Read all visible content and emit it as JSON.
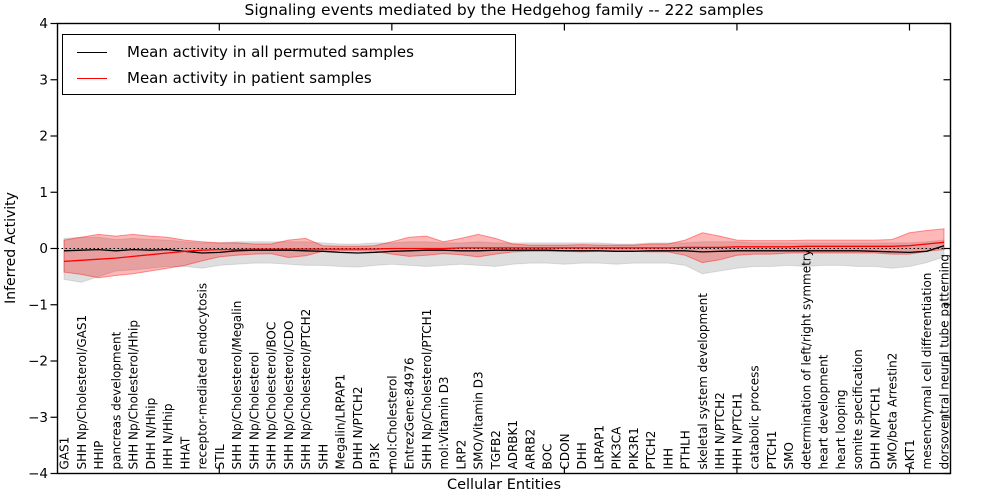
{
  "figure": {
    "title": "Signaling events mediated by the Hedgehog family -- 222 samples",
    "xlabel": "Cellular Entities",
    "ylabel": "Inferred Activity"
  },
  "legend": {
    "entries": [
      {
        "label": "Mean activity in all permuted samples",
        "color": "#000000"
      },
      {
        "label": "Mean activity in patient samples",
        "color": "#ff0000"
      }
    ]
  },
  "chart_data": {
    "type": "line",
    "title": "Signaling events mediated by the Hedgehog family -- 222 samples",
    "xlabel": "Cellular Entities",
    "ylabel": "Inferred Activity",
    "ylim": [
      -4,
      4
    ],
    "yticks": [
      -4,
      -3,
      -2,
      -1,
      0,
      1,
      2,
      3,
      4
    ],
    "x_major_tick_step": 10,
    "grid": false,
    "legend_position": "upper left",
    "zero_line": true,
    "categories": [
      "GAS1",
      "SHH Np/Cholesterol/GAS1",
      "HHIP",
      "pancreas development",
      "SHH Np/Cholesterol/Hhip",
      "DHH N/Hhip",
      "IHH N/Hhip",
      "HHAT",
      "receptor-mediated endocytosis",
      "STIL",
      "SHH Np/Cholesterol/Megalin",
      "SHH Np/Cholesterol",
      "SHH Np/Cholesterol/BOC",
      "SHH Np/Cholesterol/CDO",
      "SHH Np/Cholesterol/PTCH2",
      "SHH",
      "Megalin/LRPAP1",
      "DHH N/PTCH2",
      "PI3K",
      "mol:Cholesterol",
      "EntrezGene:84976",
      "SHH Np/Cholesterol/PTCH1",
      "mol:Vitamin D3",
      "LRP2",
      "SMO/Vitamin D3",
      "TGFB2",
      "ADRBK1",
      "ARRB2",
      "BOC",
      "CDON",
      "DHH",
      "LRPAP1",
      "PIK3CA",
      "PIK3R1",
      "PTCH2",
      "IHH",
      "PTHLH",
      "skeletal system development",
      "IHH N/PTCH2",
      "IHH N/PTCH1",
      "catabolic process",
      "PTCH1",
      "SMO",
      "determination of left/right symmetry",
      "heart development",
      "heart looping",
      "somite specification",
      "DHH N/PTCH1",
      "SMO/beta Arrestin2",
      "AKT1",
      "mesenchymal cell differentiation",
      "dorsoventral neural tube patterning"
    ],
    "series": [
      {
        "name": "Mean activity in all permuted samples",
        "color": "#000000",
        "band_fill": "rgba(0,0,0,0.13)",
        "band_edge": "rgba(0,0,0,0.10)",
        "values": [
          -0.04,
          -0.03,
          -0.02,
          -0.04,
          -0.02,
          -0.03,
          -0.02,
          -0.05,
          -0.08,
          -0.07,
          -0.04,
          -0.03,
          -0.03,
          -0.03,
          -0.04,
          -0.05,
          -0.07,
          -0.08,
          -0.07,
          -0.05,
          -0.04,
          -0.03,
          -0.03,
          -0.04,
          -0.04,
          -0.03,
          -0.03,
          -0.03,
          -0.03,
          -0.04,
          -0.04,
          -0.04,
          -0.05,
          -0.05,
          -0.04,
          -0.04,
          -0.04,
          -0.06,
          -0.05,
          -0.04,
          -0.04,
          -0.04,
          -0.04,
          -0.04,
          -0.04,
          -0.04,
          -0.04,
          -0.05,
          -0.06,
          -0.07,
          -0.05,
          0.05
        ],
        "band_lower": [
          -0.55,
          -0.6,
          -0.5,
          -0.4,
          -0.38,
          -0.35,
          -0.32,
          -0.32,
          -0.35,
          -0.3,
          -0.28,
          -0.26,
          -0.26,
          -0.28,
          -0.3,
          -0.3,
          -0.32,
          -0.33,
          -0.3,
          -0.28,
          -0.3,
          -0.32,
          -0.3,
          -0.28,
          -0.3,
          -0.32,
          -0.28,
          -0.26,
          -0.26,
          -0.28,
          -0.26,
          -0.26,
          -0.28,
          -0.26,
          -0.26,
          -0.26,
          -0.3,
          -0.45,
          -0.4,
          -0.35,
          -0.32,
          -0.32,
          -0.3,
          -0.32,
          -0.3,
          -0.3,
          -0.32,
          -0.32,
          -0.35,
          -0.32,
          -0.25,
          -0.15
        ],
        "band_upper": [
          0.18,
          0.2,
          0.2,
          0.16,
          0.18,
          0.16,
          0.15,
          0.12,
          0.1,
          0.1,
          0.12,
          0.12,
          0.12,
          0.12,
          0.12,
          0.1,
          0.08,
          0.08,
          0.1,
          0.1,
          0.12,
          0.12,
          0.1,
          0.1,
          0.12,
          0.1,
          0.1,
          0.1,
          0.1,
          0.1,
          0.1,
          0.1,
          0.08,
          0.08,
          0.1,
          0.1,
          0.1,
          0.12,
          0.12,
          0.12,
          0.1,
          0.1,
          0.1,
          0.1,
          0.1,
          0.1,
          0.1,
          0.1,
          0.1,
          0.1,
          0.12,
          0.15
        ]
      },
      {
        "name": "Mean activity in patient samples",
        "color": "#ff0000",
        "band_fill": "rgba(255,0,0,0.28)",
        "band_edge": "rgba(255,0,0,0.40)",
        "values": [
          -0.23,
          -0.21,
          -0.19,
          -0.17,
          -0.14,
          -0.11,
          -0.08,
          -0.05,
          -0.03,
          -0.02,
          -0.02,
          -0.01,
          -0.01,
          -0.01,
          -0.01,
          -0.01,
          -0.01,
          -0.01,
          -0.01,
          0.0,
          0.0,
          0.0,
          0.0,
          0.01,
          0.01,
          0.01,
          0.01,
          0.01,
          0.01,
          0.01,
          0.01,
          0.01,
          0.01,
          0.01,
          0.01,
          0.01,
          0.02,
          0.02,
          0.02,
          0.03,
          0.03,
          0.03,
          0.03,
          0.04,
          0.04,
          0.04,
          0.04,
          0.04,
          0.04,
          0.05,
          0.08,
          0.11
        ],
        "band_lower": [
          -0.42,
          -0.46,
          -0.52,
          -0.48,
          -0.45,
          -0.4,
          -0.35,
          -0.3,
          -0.22,
          -0.15,
          -0.12,
          -0.1,
          -0.09,
          -0.16,
          -0.13,
          -0.05,
          -0.04,
          -0.04,
          -0.05,
          -0.1,
          -0.14,
          -0.12,
          -0.09,
          -0.11,
          -0.15,
          -0.1,
          -0.06,
          -0.05,
          -0.05,
          -0.05,
          -0.06,
          -0.05,
          -0.05,
          -0.05,
          -0.06,
          -0.06,
          -0.12,
          -0.25,
          -0.2,
          -0.12,
          -0.1,
          -0.1,
          -0.08,
          -0.08,
          -0.08,
          -0.08,
          -0.08,
          -0.08,
          -0.1,
          -0.1,
          -0.05,
          -0.02
        ],
        "band_upper": [
          0.15,
          0.2,
          0.25,
          0.22,
          0.25,
          0.22,
          0.2,
          0.15,
          0.12,
          0.1,
          0.1,
          0.08,
          0.08,
          0.15,
          0.18,
          0.05,
          0.04,
          0.04,
          0.05,
          0.12,
          0.2,
          0.22,
          0.12,
          0.18,
          0.25,
          0.18,
          0.08,
          0.06,
          0.06,
          0.06,
          0.07,
          0.06,
          0.06,
          0.06,
          0.08,
          0.08,
          0.15,
          0.28,
          0.22,
          0.15,
          0.14,
          0.14,
          0.14,
          0.15,
          0.15,
          0.15,
          0.15,
          0.15,
          0.16,
          0.28,
          0.32,
          0.35
        ]
      }
    ]
  }
}
